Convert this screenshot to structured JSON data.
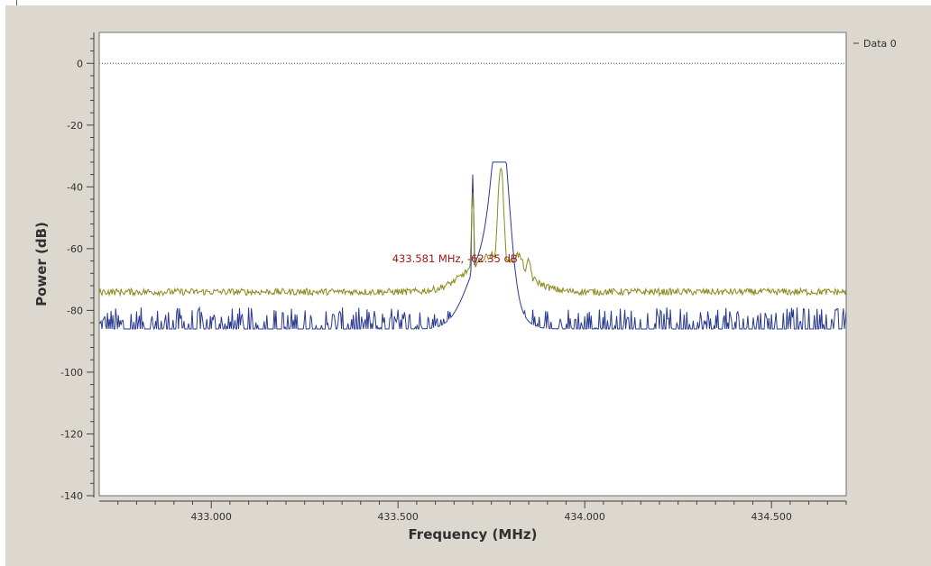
{
  "legend": {
    "label": "Data 0"
  },
  "marker": {
    "label": "433.581 MHz, -62.35 dB"
  },
  "colors": {
    "background": "#dcd8d0",
    "plot_bg": "#ffffff",
    "max_hold": "#8a8a1c",
    "spectrum": "#2a3a8e",
    "reference_line": "#2e5f7a",
    "marker_text": "#a01818"
  },
  "chart_data": {
    "type": "line",
    "xlabel": "Frequency (MHz)",
    "ylabel": "Power (dB)",
    "xlim": [
      432.7,
      434.7
    ],
    "ylim": [
      -140,
      10
    ],
    "x_ticks": [
      433.0,
      433.5,
      434.0,
      434.5
    ],
    "x_tick_labels": [
      "433.000",
      "433.500",
      "434.000",
      "434.500"
    ],
    "y_ticks": [
      0,
      -20,
      -40,
      -60,
      -80,
      -100,
      -120,
      -140
    ],
    "y_tick_labels": [
      "0",
      "-20",
      "-40",
      "-60",
      "-80",
      "-100",
      "-120",
      "-140"
    ],
    "reference_line": 0,
    "grid": false,
    "legend_position": "top-right",
    "series": [
      {
        "name": "Data 0",
        "role": "max-hold",
        "noise_floor": -74,
        "peaks": [
          {
            "x": 433.7,
            "y": -43
          },
          {
            "x": 433.775,
            "y": -33
          },
          {
            "x": 433.85,
            "y": -64
          }
        ]
      },
      {
        "role": "spectrum",
        "noise_floor": -86,
        "peaks": [
          {
            "x": 433.7,
            "y": -37
          },
          {
            "x": 433.775,
            "y": -36
          }
        ]
      }
    ],
    "marker": {
      "x": 433.581,
      "y": -62.35,
      "label": "433.581 MHz, -62.35 dB"
    }
  }
}
